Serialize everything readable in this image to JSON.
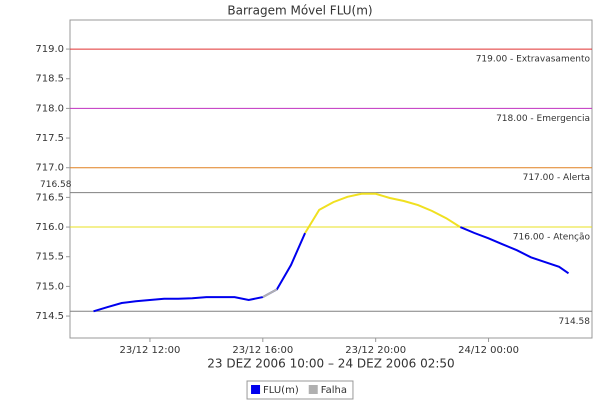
{
  "chart_data": {
    "type": "line",
    "title": "Barragem Móvel FLU(m)",
    "x_label": "23 DEZ 2006 10:00 – 24 DEZ 2006 02:50",
    "x": [
      "23/12 10:00",
      "23/12 10:30",
      "23/12 11:00",
      "23/12 11:30",
      "23/12 12:00",
      "23/12 12:30",
      "23/12 13:00",
      "23/12 13:30",
      "23/12 14:00",
      "23/12 14:30",
      "23/12 15:00",
      "23/12 15:30",
      "23/12 16:00",
      "23/12 16:30",
      "23/12 17:00",
      "23/12 17:30",
      "23/12 18:00",
      "23/12 18:30",
      "23/12 19:00",
      "23/12 19:30",
      "23/12 20:00",
      "23/12 20:30",
      "23/12 21:00",
      "23/12 21:30",
      "23/12 22:00",
      "23/12 22:30",
      "23/12 23:00",
      "23/12 23:30",
      "24/12 00:00",
      "24/12 00:30",
      "24/12 01:00",
      "24/12 01:30",
      "24/12 02:00",
      "24/12 02:30",
      "24/12 02:50"
    ],
    "series": [
      {
        "name": "FLU(m)",
        "color": "#0000ee",
        "values": [
          714.58,
          714.65,
          714.72,
          714.75,
          714.77,
          714.79,
          714.79,
          714.8,
          714.82,
          714.82,
          714.82,
          714.77,
          714.82,
          714.95,
          715.36,
          715.9,
          null,
          null,
          null,
          null,
          null,
          null,
          null,
          null,
          null,
          null,
          716.0,
          715.9,
          715.81,
          715.71,
          715.61,
          715.49,
          715.41,
          715.33,
          715.22
        ]
      },
      {
        "name": "Falha",
        "color": "#b0b0b0",
        "values": [
          null,
          null,
          null,
          null,
          null,
          null,
          null,
          null,
          null,
          null,
          null,
          null,
          714.82,
          714.95,
          null,
          null,
          null,
          null,
          null,
          null,
          null,
          null,
          null,
          null,
          null,
          null,
          null,
          null,
          null,
          null,
          null,
          null,
          null,
          null,
          null
        ]
      },
      {
        "color": "#f0e020",
        "values": [
          null,
          null,
          null,
          null,
          null,
          null,
          null,
          null,
          null,
          null,
          null,
          null,
          null,
          null,
          null,
          715.9,
          716.29,
          716.42,
          716.51,
          716.56,
          716.56,
          716.49,
          716.44,
          716.37,
          716.27,
          716.15,
          716.0,
          null,
          null,
          null,
          null,
          null,
          null,
          null,
          null
        ]
      }
    ],
    "xlim": [
      "23/12 09:10",
      "24/12 03:40"
    ],
    "xticks": [
      "23/12 12:00",
      "23/12 16:00",
      "23/12 20:00",
      "24/12 00:00"
    ],
    "ylim": [
      714.13,
      719.49
    ],
    "yticks": [
      714.5,
      {
        "value": 715,
        "label": "715.0"
      },
      715.5,
      {
        "value": 716,
        "label": "716.0"
      },
      716.5,
      {
        "value": 717,
        "label": "717.0"
      },
      717.5,
      {
        "value": 718,
        "label": "718.0"
      },
      718.5,
      {
        "value": 719,
        "label": "719.0"
      }
    ],
    "markers": [
      {
        "value": 719,
        "label": "719.00 - Extravasamento",
        "color": "#e03030",
        "side": "right"
      },
      {
        "value": 718,
        "label": "718.00 - Emergencia",
        "color": "#c030c0",
        "side": "right"
      },
      {
        "value": 717,
        "label": "717.00 - Alerta",
        "color": "#e08020",
        "side": "right"
      },
      {
        "value": 716.58,
        "label": "716.58",
        "color": "#808080",
        "side": "left"
      },
      {
        "value": 716,
        "label": "716.00 - Atenção",
        "color": "#e8e020",
        "side": "right"
      },
      {
        "value": 714.58,
        "label": "714.58",
        "color": "#808080",
        "side": "right"
      }
    ],
    "legend": "bottom"
  }
}
